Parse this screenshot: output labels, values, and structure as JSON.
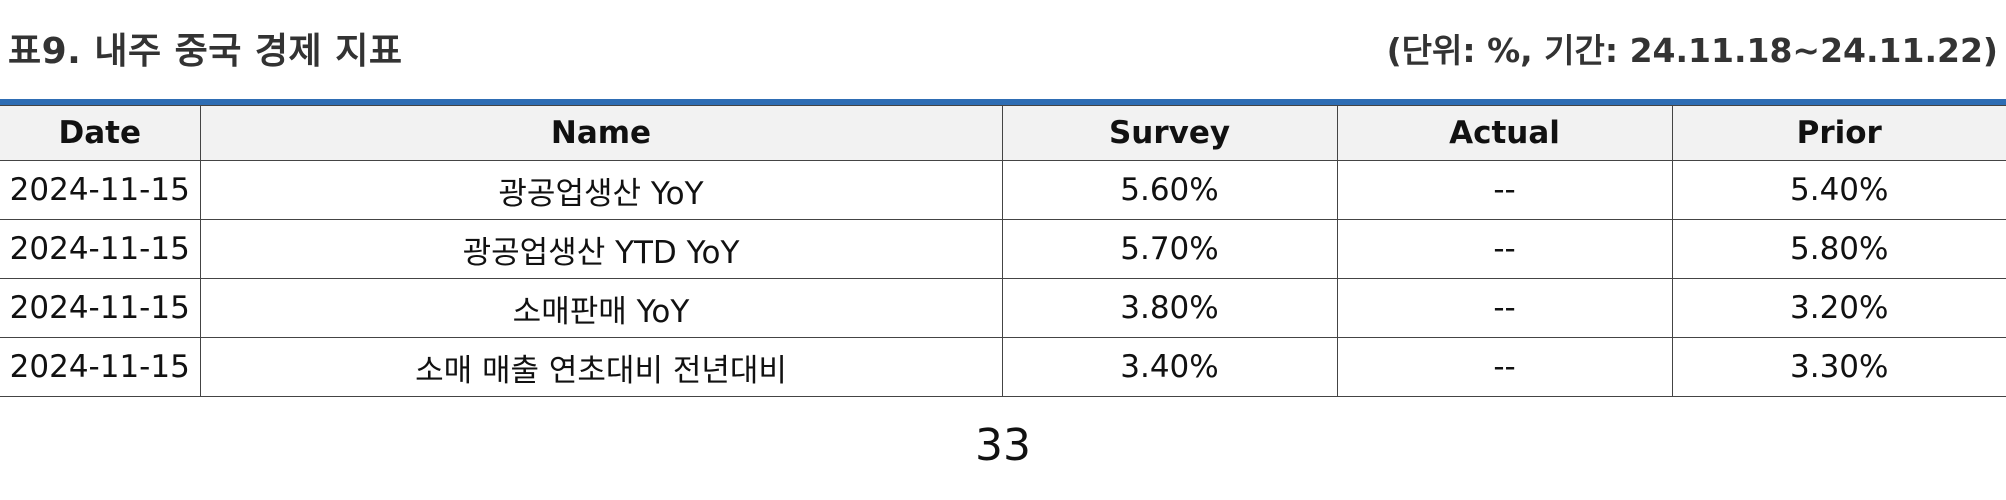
{
  "header": {
    "title": "표9. 내주 중국 경제 지표",
    "unit": "(단위: %, 기간: 24.11.18~24.11.22)"
  },
  "colors": {
    "accent_rule": "#2e6db4",
    "header_bg": "#f2f2f2"
  },
  "table": {
    "columns": [
      "Date",
      "Name",
      "Survey",
      "Actual",
      "Prior"
    ],
    "rows": [
      {
        "date": "2024-11-15",
        "name": "광공업생산 YoY",
        "survey": "5.60%",
        "actual": "--",
        "prior": "5.40%"
      },
      {
        "date": "2024-11-15",
        "name": "광공업생산 YTD YoY",
        "survey": "5.70%",
        "actual": "--",
        "prior": "5.80%"
      },
      {
        "date": "2024-11-15",
        "name": "소매판매 YoY",
        "survey": "3.80%",
        "actual": "--",
        "prior": "3.20%"
      },
      {
        "date": "2024-11-15",
        "name": "소매 매출 연초대비 전년대비",
        "survey": "3.40%",
        "actual": "--",
        "prior": "3.30%"
      }
    ]
  },
  "footer": {
    "page_number": "33"
  }
}
